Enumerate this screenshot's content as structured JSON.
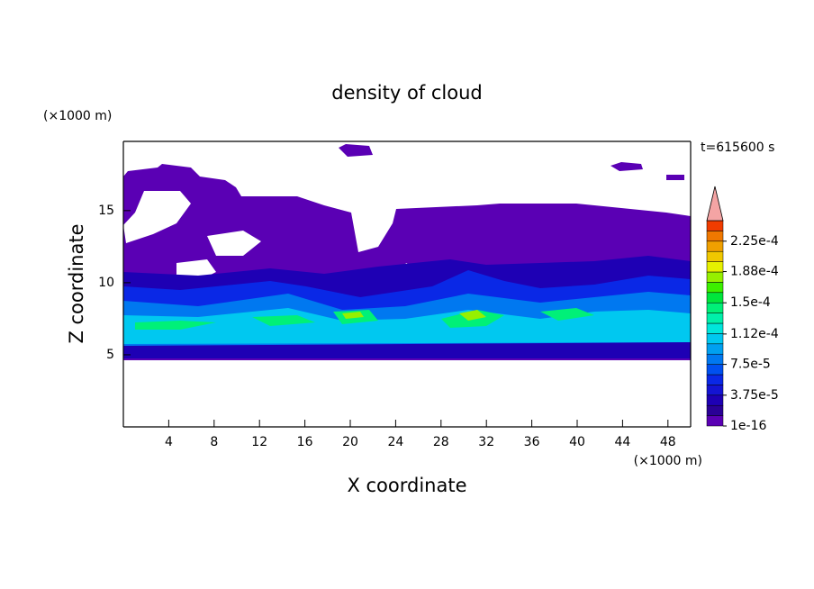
{
  "chart_data": {
    "type": "contour",
    "title": "density of cloud",
    "x_label": "X coordinate",
    "y_label": "Z coordinate",
    "x_unit": "(×1000 m)",
    "y_unit": "(×1000 m)",
    "annotation": "t=615600 s",
    "xlim": [
      0,
      50
    ],
    "xticks": [
      4,
      8,
      12,
      16,
      20,
      24,
      28,
      32,
      36,
      40,
      44,
      48
    ],
    "ylim": [
      0,
      19.8
    ],
    "yticks": [
      5,
      10,
      15
    ],
    "colorbar": {
      "levels_lim": [
        0,
        0.00025
      ],
      "colors": [
        "#5a00b4",
        "#2a0096",
        "#1e00b4",
        "#1414d2",
        "#0a28e6",
        "#0050f0",
        "#0078f0",
        "#00a0f0",
        "#00c8f0",
        "#00e6dc",
        "#00f0aa",
        "#00f078",
        "#00e63c",
        "#3cf000",
        "#96f000",
        "#e6f000",
        "#f0c800",
        "#f0a000",
        "#f07800",
        "#f03c00"
      ],
      "extend_color": "#f4a4a4",
      "ticks": [
        {
          "value": 1e-16,
          "label": "1e-16"
        },
        {
          "value": 3.75e-05,
          "label": "3.75e-5"
        },
        {
          "value": 7.5e-05,
          "label": "7.5e-5"
        },
        {
          "value": 0.000112,
          "label": "1.12e-4"
        },
        {
          "value": 0.00015,
          "label": "1.5e-4"
        },
        {
          "value": 0.000188,
          "label": "1.88e-4"
        },
        {
          "value": 0.000225,
          "label": "2.25e-4"
        }
      ]
    }
  }
}
